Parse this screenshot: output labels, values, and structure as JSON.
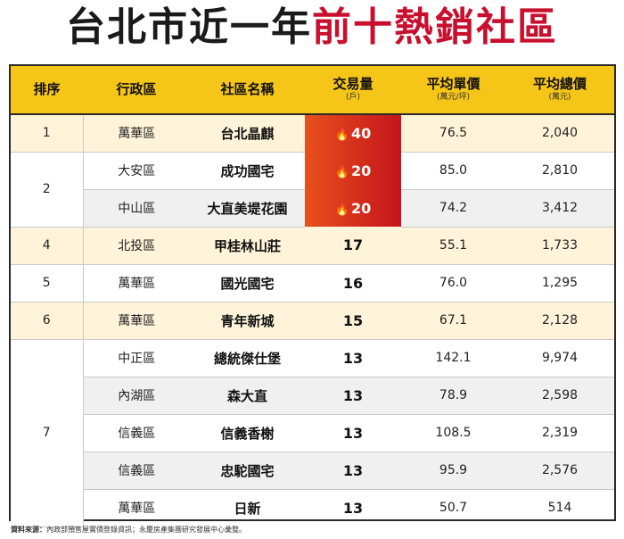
{
  "title": {
    "part1": "台北市近一年",
    "part2": "前十熱銷社區"
  },
  "headers": {
    "rank": "排序",
    "district": "行政區",
    "community": "社區名稱",
    "volume": "交易量",
    "volume_unit": "(戶)",
    "unit_price": "平均單價",
    "unit_price_unit": "(萬元/坪)",
    "total_price": "平均總價",
    "total_price_unit": "(萬元)"
  },
  "rows": [
    {
      "rank": "1",
      "district": "萬華區",
      "community": "台北晶麒",
      "volume": "40",
      "unit_price": "76.5",
      "total_price": "2,040"
    },
    {
      "rank": "2",
      "district": "大安區",
      "community": "成功國宅",
      "volume": "20",
      "unit_price": "85.0",
      "total_price": "2,810"
    },
    {
      "rank": "",
      "district": "中山區",
      "community": "大直美堤花園",
      "volume": "20",
      "unit_price": "74.2",
      "total_price": "3,412"
    },
    {
      "rank": "4",
      "district": "北投區",
      "community": "甲桂林山莊",
      "volume": "17",
      "unit_price": "55.1",
      "total_price": "1,733"
    },
    {
      "rank": "5",
      "district": "萬華區",
      "community": "國光國宅",
      "volume": "16",
      "unit_price": "76.0",
      "total_price": "1,295"
    },
    {
      "rank": "6",
      "district": "萬華區",
      "community": "青年新城",
      "volume": "15",
      "unit_price": "67.1",
      "total_price": "2,128"
    },
    {
      "rank": "7",
      "district": "中正區",
      "community": "總統傑仕堡",
      "volume": "13",
      "unit_price": "142.1",
      "total_price": "9,974"
    },
    {
      "rank": "",
      "district": "內湖區",
      "community": "森大直",
      "volume": "13",
      "unit_price": "78.9",
      "total_price": "2,598"
    },
    {
      "rank": "",
      "district": "信義區",
      "community": "信義香榭",
      "volume": "13",
      "unit_price": "108.5",
      "total_price": "2,319"
    },
    {
      "rank": "",
      "district": "信義區",
      "community": "忠駝國宅",
      "volume": "13",
      "unit_price": "95.9",
      "total_price": "2,576"
    },
    {
      "rank": "",
      "district": "萬華區",
      "community": "日新",
      "volume": "13",
      "unit_price": "50.7",
      "total_price": "514"
    }
  ],
  "source": {
    "label": "資料來源：",
    "text": "內政部預售屋實價登錄資訊；永慶房產集團研究發展中心彙整。"
  },
  "colors": {
    "header_bg": "#f5c518",
    "title_accent": "#c8102e",
    "hot_cell": "#d62a1c",
    "highlight_row": "#fff3d9",
    "gray_row": "#f0f0f0"
  }
}
